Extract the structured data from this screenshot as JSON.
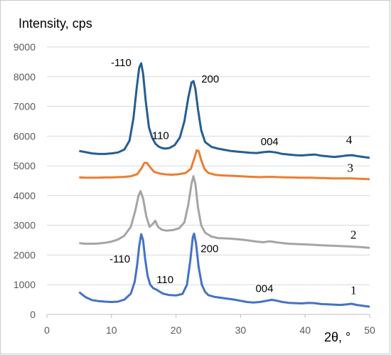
{
  "chart_data": {
    "type": "line",
    "ylabel": "Intensity, cps",
    "xlabel": "2θ, °",
    "xlim": [
      0,
      50
    ],
    "ylim": [
      0,
      9000
    ],
    "x_ticks": [
      "0",
      "10",
      "20",
      "30",
      "40",
      "50"
    ],
    "y_ticks": [
      "0",
      "1000",
      "2000",
      "3000",
      "4000",
      "5000",
      "6000",
      "7000",
      "8000",
      "9000"
    ],
    "grid": "horizontal",
    "series": [
      {
        "name": "1",
        "color": "#4472c4",
        "points": [
          [
            5,
            750
          ],
          [
            6,
            580
          ],
          [
            7,
            480
          ],
          [
            8,
            450
          ],
          [
            9,
            430
          ],
          [
            10,
            420
          ],
          [
            11,
            430
          ],
          [
            12,
            500
          ],
          [
            13,
            700
          ],
          [
            13.6,
            1100
          ],
          [
            14,
            1700
          ],
          [
            14.3,
            2300
          ],
          [
            14.6,
            2700
          ],
          [
            14.9,
            2500
          ],
          [
            15.2,
            1900
          ],
          [
            15.6,
            1300
          ],
          [
            16,
            1000
          ],
          [
            16.5,
            880
          ],
          [
            17,
            830
          ],
          [
            17.5,
            760
          ],
          [
            18,
            700
          ],
          [
            19,
            650
          ],
          [
            20,
            640
          ],
          [
            21,
            690
          ],
          [
            21.7,
            1000
          ],
          [
            22.2,
            1800
          ],
          [
            22.6,
            2600
          ],
          [
            22.8,
            2720
          ],
          [
            23.1,
            2400
          ],
          [
            23.5,
            1600
          ],
          [
            24,
            1000
          ],
          [
            24.5,
            760
          ],
          [
            25,
            650
          ],
          [
            26,
            590
          ],
          [
            27,
            560
          ],
          [
            28,
            530
          ],
          [
            29,
            500
          ],
          [
            30,
            460
          ],
          [
            31,
            420
          ],
          [
            32,
            400
          ],
          [
            33,
            420
          ],
          [
            34,
            460
          ],
          [
            34.8,
            490
          ],
          [
            35.5,
            470
          ],
          [
            36.5,
            420
          ],
          [
            37.5,
            390
          ],
          [
            38.5,
            380
          ],
          [
            39.5,
            370
          ],
          [
            40.5,
            390
          ],
          [
            41.5,
            380
          ],
          [
            42.5,
            350
          ],
          [
            43.5,
            340
          ],
          [
            44.5,
            330
          ],
          [
            45.5,
            320
          ],
          [
            46.5,
            340
          ],
          [
            47.2,
            360
          ],
          [
            48,
            320
          ],
          [
            49,
            290
          ],
          [
            50,
            260
          ]
        ]
      },
      {
        "name": "2",
        "color": "#a5a5a5",
        "points": [
          [
            5,
            2400
          ],
          [
            6,
            2380
          ],
          [
            7,
            2380
          ],
          [
            8,
            2390
          ],
          [
            9,
            2410
          ],
          [
            10,
            2450
          ],
          [
            11,
            2520
          ],
          [
            12,
            2650
          ],
          [
            13,
            2950
          ],
          [
            13.7,
            3500
          ],
          [
            14.2,
            4000
          ],
          [
            14.5,
            4150
          ],
          [
            14.9,
            3900
          ],
          [
            15.4,
            3300
          ],
          [
            15.9,
            2950
          ],
          [
            16.4,
            3050
          ],
          [
            16.8,
            3150
          ],
          [
            17.2,
            2950
          ],
          [
            17.8,
            2850
          ],
          [
            18.5,
            2820
          ],
          [
            19.5,
            2840
          ],
          [
            20.5,
            2900
          ],
          [
            21.3,
            3100
          ],
          [
            21.9,
            3700
          ],
          [
            22.4,
            4400
          ],
          [
            22.7,
            4650
          ],
          [
            23,
            4400
          ],
          [
            23.4,
            3600
          ],
          [
            23.9,
            3000
          ],
          [
            24.5,
            2750
          ],
          [
            25.5,
            2620
          ],
          [
            26.5,
            2570
          ],
          [
            27.5,
            2560
          ],
          [
            28.5,
            2550
          ],
          [
            29.5,
            2530
          ],
          [
            30.5,
            2510
          ],
          [
            31.5,
            2480
          ],
          [
            32.5,
            2450
          ],
          [
            33.5,
            2430
          ],
          [
            34.5,
            2460
          ],
          [
            35.5,
            2430
          ],
          [
            36.5,
            2400
          ],
          [
            37.5,
            2380
          ],
          [
            38.5,
            2370
          ],
          [
            39.5,
            2360
          ],
          [
            40.5,
            2350
          ],
          [
            41.5,
            2340
          ],
          [
            42.5,
            2330
          ],
          [
            43.5,
            2320
          ],
          [
            44.5,
            2310
          ],
          [
            45.5,
            2300
          ],
          [
            46.5,
            2290
          ],
          [
            47.5,
            2280
          ],
          [
            48.5,
            2270
          ],
          [
            50,
            2240
          ]
        ]
      },
      {
        "name": "3",
        "color": "#ed7d31",
        "points": [
          [
            5,
            4610
          ],
          [
            6,
            4600
          ],
          [
            7,
            4600
          ],
          [
            8,
            4600
          ],
          [
            9,
            4610
          ],
          [
            10,
            4610
          ],
          [
            11,
            4620
          ],
          [
            12,
            4630
          ],
          [
            13,
            4650
          ],
          [
            14,
            4720
          ],
          [
            14.6,
            4900
          ],
          [
            15.1,
            5100
          ],
          [
            15.5,
            5100
          ],
          [
            16,
            4950
          ],
          [
            16.6,
            4800
          ],
          [
            17.5,
            4740
          ],
          [
            18.5,
            4710
          ],
          [
            19.5,
            4700
          ],
          [
            20.5,
            4720
          ],
          [
            21.5,
            4760
          ],
          [
            22.3,
            4900
          ],
          [
            22.9,
            5300
          ],
          [
            23.2,
            5520
          ],
          [
            23.5,
            5500
          ],
          [
            23.9,
            5200
          ],
          [
            24.4,
            4900
          ],
          [
            25,
            4760
          ],
          [
            26,
            4700
          ],
          [
            27,
            4680
          ],
          [
            28,
            4670
          ],
          [
            29,
            4660
          ],
          [
            30,
            4650
          ],
          [
            31,
            4640
          ],
          [
            32,
            4630
          ],
          [
            33,
            4620
          ],
          [
            34,
            4630
          ],
          [
            35,
            4630
          ],
          [
            36,
            4620
          ],
          [
            37,
            4610
          ],
          [
            38,
            4610
          ],
          [
            39,
            4600
          ],
          [
            40,
            4600
          ],
          [
            41,
            4600
          ],
          [
            42,
            4590
          ],
          [
            43,
            4590
          ],
          [
            44,
            4580
          ],
          [
            45,
            4580
          ],
          [
            46,
            4580
          ],
          [
            47,
            4580
          ],
          [
            48,
            4570
          ],
          [
            49,
            4560
          ],
          [
            50,
            4550
          ]
        ]
      },
      {
        "name": "4",
        "color": "#255e91",
        "points": [
          [
            5,
            5500
          ],
          [
            6,
            5460
          ],
          [
            7,
            5420
          ],
          [
            8,
            5400
          ],
          [
            9,
            5400
          ],
          [
            10,
            5420
          ],
          [
            11,
            5450
          ],
          [
            12,
            5550
          ],
          [
            12.8,
            5850
          ],
          [
            13.4,
            6600
          ],
          [
            13.9,
            7600
          ],
          [
            14.3,
            8300
          ],
          [
            14.6,
            8450
          ],
          [
            14.9,
            8100
          ],
          [
            15.3,
            7200
          ],
          [
            15.8,
            6300
          ],
          [
            16.3,
            5950
          ],
          [
            16.8,
            5750
          ],
          [
            17.3,
            5650
          ],
          [
            17.8,
            5600
          ],
          [
            18.3,
            5580
          ],
          [
            19,
            5600
          ],
          [
            19.8,
            5700
          ],
          [
            20.6,
            5950
          ],
          [
            21.3,
            6500
          ],
          [
            21.9,
            7300
          ],
          [
            22.4,
            7800
          ],
          [
            22.7,
            7850
          ],
          [
            23,
            7600
          ],
          [
            23.4,
            6900
          ],
          [
            23.9,
            6200
          ],
          [
            24.5,
            5800
          ],
          [
            25.5,
            5640
          ],
          [
            26.5,
            5580
          ],
          [
            27.5,
            5540
          ],
          [
            28.5,
            5500
          ],
          [
            29.5,
            5480
          ],
          [
            30.5,
            5460
          ],
          [
            31.5,
            5440
          ],
          [
            32.5,
            5430
          ],
          [
            33.5,
            5460
          ],
          [
            34.5,
            5480
          ],
          [
            35.5,
            5450
          ],
          [
            36.5,
            5400
          ],
          [
            37.5,
            5380
          ],
          [
            38.5,
            5360
          ],
          [
            39.5,
            5350
          ],
          [
            40.5,
            5370
          ],
          [
            41.5,
            5380
          ],
          [
            42.5,
            5340
          ],
          [
            43.5,
            5320
          ],
          [
            44.5,
            5300
          ],
          [
            45.5,
            5320
          ],
          [
            46.5,
            5350
          ],
          [
            47.3,
            5360
          ],
          [
            48,
            5330
          ],
          [
            49,
            5300
          ],
          [
            50,
            5270
          ]
        ]
      }
    ],
    "annotations": [
      {
        "text": "-110",
        "x": 11.5,
        "y": 8350
      },
      {
        "text": "200",
        "x": 25.3,
        "y": 7800
      },
      {
        "text": "110",
        "x": 17.6,
        "y": 5900
      },
      {
        "text": "004",
        "x": 34.5,
        "y": 5700
      },
      {
        "text": "-110",
        "x": 11.3,
        "y": 1750
      },
      {
        "text": "200",
        "x": 25.2,
        "y": 2100
      },
      {
        "text": "110",
        "x": 18.3,
        "y": 1050
      },
      {
        "text": "004",
        "x": 33.7,
        "y": 750
      }
    ],
    "curve_labels": [
      {
        "text": "4",
        "x": 46.8,
        "y": 5750
      },
      {
        "text": "3",
        "x": 47,
        "y": 4800
      },
      {
        "text": "2",
        "x": 47.5,
        "y": 2550
      },
      {
        "text": "1",
        "x": 47.5,
        "y": 680
      }
    ]
  }
}
